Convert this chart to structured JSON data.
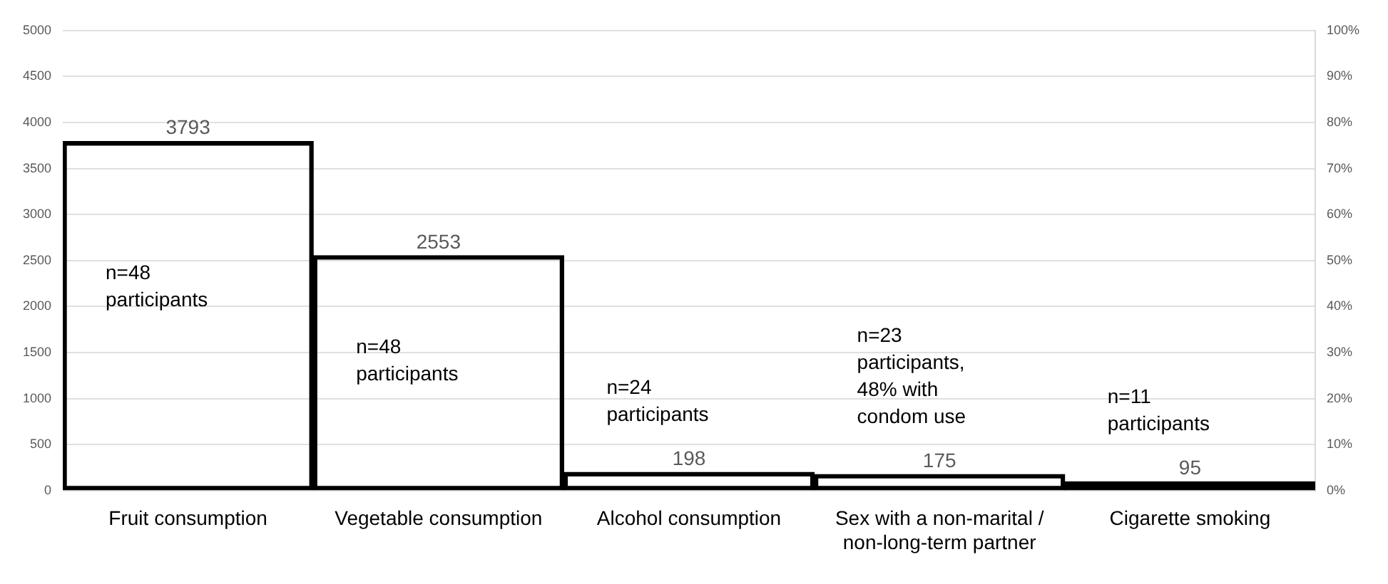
{
  "chart_data": {
    "type": "bar",
    "categories": [
      "Fruit consumption",
      "Vegetable consumption",
      "Alcohol consumption",
      "Sex with a non-marital / non-long-term partner",
      "Cigarette smoking"
    ],
    "series": [
      {
        "color": "#000000",
        "values": [
          3793,
          2553,
          198,
          175,
          95
        ]
      }
    ],
    "data_labels": true,
    "ylim": [
      0,
      5000
    ],
    "yticks": [
      0,
      500,
      1000,
      1500,
      2000,
      2500,
      3000,
      3500,
      4000,
      4500,
      5000
    ],
    "y2lim": [
      0,
      100
    ],
    "y2ticks": [
      {
        "value": 0,
        "label": "0%"
      },
      {
        "value": 10,
        "label": "10%"
      },
      {
        "value": 20,
        "label": "20%"
      },
      {
        "value": 30,
        "label": "30%"
      },
      {
        "value": 40,
        "label": "40%"
      },
      {
        "value": 50,
        "label": "50%"
      },
      {
        "value": 60,
        "label": "60%"
      },
      {
        "value": 70,
        "label": "70%"
      },
      {
        "value": 80,
        "label": "80%"
      },
      {
        "value": 90,
        "label": "90%"
      },
      {
        "value": 100,
        "label": "100%"
      }
    ],
    "annotations": [
      "n=48\nparticipants",
      "n=48\nparticipants",
      "n=24\nparticipants",
      "n=23\nparticipants,\n48% with\ncondom use",
      "n=11\nparticipants"
    ],
    "grid": "y",
    "legend": false
  }
}
